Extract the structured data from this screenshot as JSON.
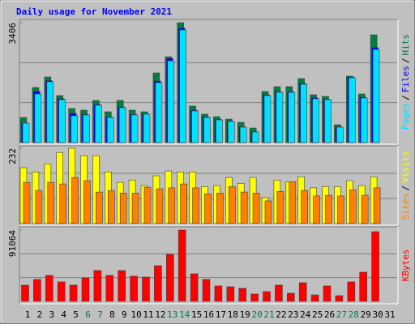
{
  "title": "Daily usage for November 2021",
  "chart_data": [
    {
      "type": "bar",
      "ylim": [
        0,
        3406
      ],
      "yticks": [
        3406
      ],
      "legend_separator": "/",
      "series": [
        {
          "name": "Hits",
          "color": "#008040",
          "values": [
            713,
            1565,
            1864,
            1335,
            967,
            921,
            1197,
            875,
            1197,
            921,
            875,
            1979,
            2439,
            3406,
            1036,
            806,
            736,
            667,
            575,
            414,
            1450,
            1588,
            1588,
            1818,
            1358,
            1312,
            506,
            1887,
            1381,
            3061,
            0
          ]
        },
        {
          "name": "Files",
          "color": "#0000ff",
          "values": [
            560,
            1450,
            1760,
            1250,
            830,
            800,
            1080,
            730,
            1010,
            800,
            820,
            1750,
            2390,
            3250,
            920,
            730,
            660,
            610,
            450,
            310,
            1360,
            1440,
            1450,
            1680,
            1270,
            1230,
            450,
            1860,
            1290,
            2700,
            0
          ]
        },
        {
          "name": "Pages",
          "color": "#00e0ff",
          "values": [
            552,
            1381,
            1726,
            1220,
            760,
            783,
            1059,
            713,
            990,
            783,
            806,
            1703,
            2324,
            3199,
            898,
            713,
            644,
            598,
            437,
            299,
            1335,
            1427,
            1427,
            1657,
            1243,
            1220,
            437,
            1841,
            1266,
            2646,
            0
          ]
        }
      ]
    },
    {
      "type": "bar",
      "ylim": [
        0,
        232
      ],
      "yticks": [
        232
      ],
      "legend_separator": "/",
      "series": [
        {
          "name": "Visits",
          "color": "#ffff00",
          "values": [
            172,
            159,
            184,
            219,
            232,
            209,
            209,
            159,
            127,
            134,
            117,
            147,
            162,
            159,
            159,
            114,
            117,
            142,
            124,
            142,
            80,
            134,
            129,
            144,
            110,
            114,
            114,
            132,
            117,
            144,
            0
          ]
        },
        {
          "name": "Sites",
          "color": "#ff8000",
          "values": [
            127,
            102,
            127,
            122,
            142,
            132,
            97,
            102,
            94,
            94,
            112,
            107,
            110,
            122,
            110,
            92,
            94,
            114,
            97,
            94,
            70,
            99,
            129,
            102,
            85,
            87,
            85,
            104,
            87,
            110,
            0
          ]
        }
      ]
    },
    {
      "type": "bar",
      "ylim": [
        0,
        91064
      ],
      "yticks": [
        91064
      ],
      "categories": [
        "1",
        "2",
        "3",
        "4",
        "5",
        "6",
        "7",
        "8",
        "9",
        "10",
        "11",
        "12",
        "13",
        "14",
        "15",
        "16",
        "17",
        "18",
        "19",
        "20",
        "21",
        "22",
        "23",
        "24",
        "25",
        "26",
        "27",
        "28",
        "29",
        "30",
        "31"
      ],
      "x_label_colors": [
        "#000000",
        "#000000",
        "#000000",
        "#000000",
        "#000000",
        "#008040",
        "#008040",
        "#000000",
        "#000000",
        "#000000",
        "#000000",
        "#000000",
        "#008040",
        "#008040",
        "#000000",
        "#000000",
        "#000000",
        "#000000",
        "#000000",
        "#008040",
        "#008040",
        "#000000",
        "#000000",
        "#000000",
        "#000000",
        "#000000",
        "#008040",
        "#008040",
        "#000000",
        "#000000",
        "#000000"
      ],
      "series": [
        {
          "name": "KBytes",
          "color": "#ff0000",
          "values": [
            20700,
            27950,
            33130,
            24850,
            20700,
            30020,
            39340,
            33130,
            39340,
            32090,
            31060,
            45540,
            60030,
            91064,
            35200,
            27950,
            19670,
            18630,
            16560,
            9320,
            12420,
            20700,
            10350,
            23810,
            8280,
            19670,
            7250,
            24850,
            37270,
            89000,
            0
          ]
        }
      ]
    }
  ]
}
